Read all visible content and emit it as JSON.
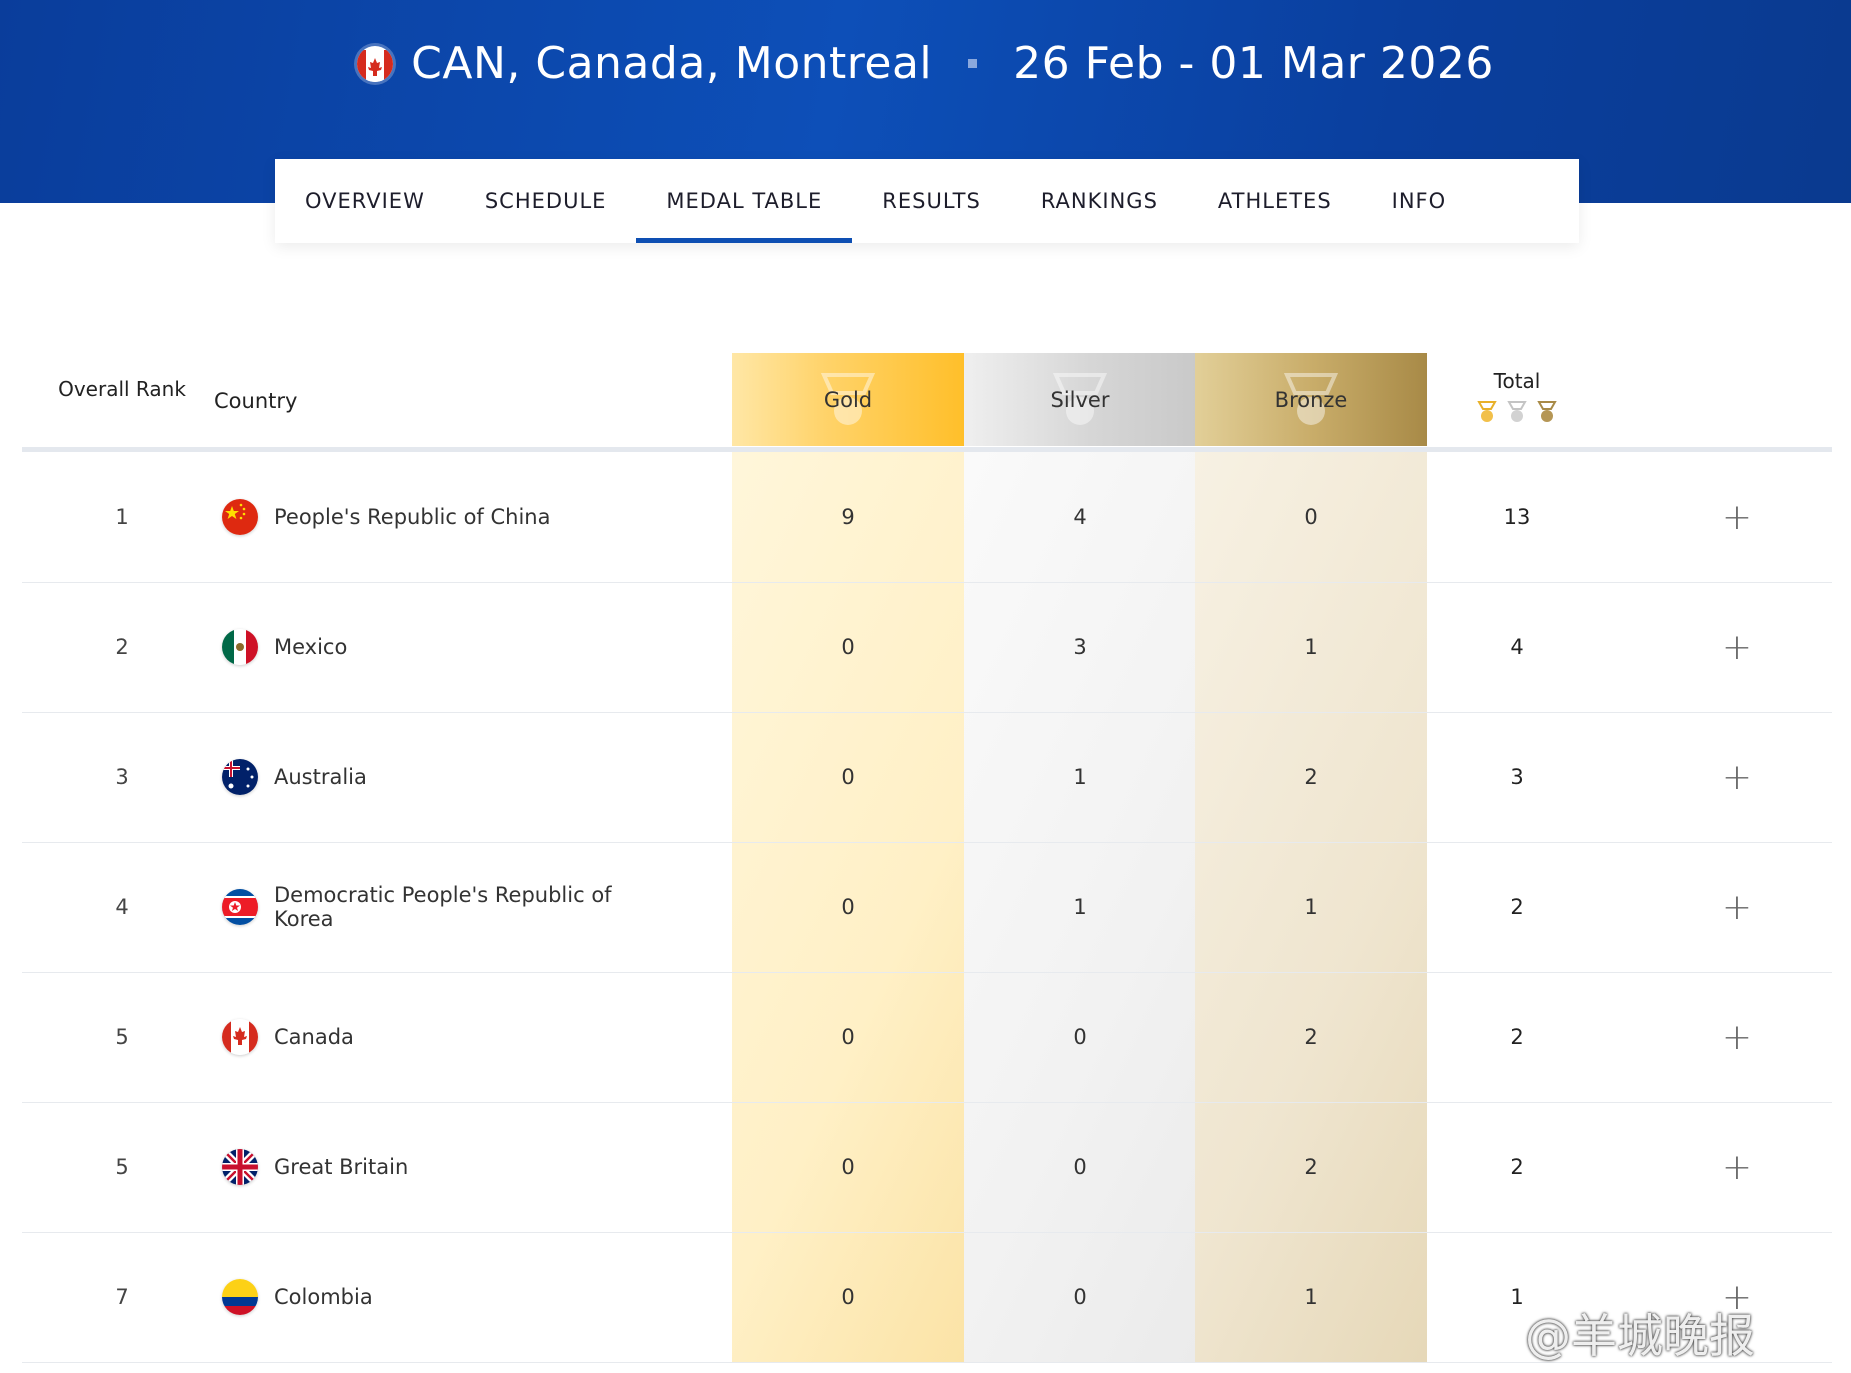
{
  "event": {
    "location": "CAN, Canada, Montreal",
    "dates": "26 Feb - 01 Mar 2026"
  },
  "tabs": [
    {
      "label": "OVERVIEW"
    },
    {
      "label": "SCHEDULE"
    },
    {
      "label": "MEDAL TABLE",
      "active": true
    },
    {
      "label": "RESULTS"
    },
    {
      "label": "RANKINGS"
    },
    {
      "label": "ATHLETES"
    },
    {
      "label": "INFO"
    }
  ],
  "table": {
    "headers": {
      "rank": "Overall Rank",
      "country": "Country",
      "gold": "Gold",
      "silver": "Silver",
      "bronze": "Bronze",
      "total": "Total"
    },
    "rows": [
      {
        "rank": "1",
        "country": "People's Republic of China",
        "gold": "9",
        "silver": "4",
        "bronze": "0",
        "total": "13",
        "flag": "china-flag-icon"
      },
      {
        "rank": "2",
        "country": "Mexico",
        "gold": "0",
        "silver": "3",
        "bronze": "1",
        "total": "4",
        "flag": "mexico-flag-icon"
      },
      {
        "rank": "3",
        "country": "Australia",
        "gold": "0",
        "silver": "1",
        "bronze": "2",
        "total": "3",
        "flag": "australia-flag-icon"
      },
      {
        "rank": "4",
        "country": "Democratic People's Republic of Korea",
        "gold": "0",
        "silver": "1",
        "bronze": "1",
        "total": "2",
        "flag": "dprk-flag-icon"
      },
      {
        "rank": "5",
        "country": "Canada",
        "gold": "0",
        "silver": "0",
        "bronze": "2",
        "total": "2",
        "flag": "canada-flag-icon"
      },
      {
        "rank": "5",
        "country": "Great Britain",
        "gold": "0",
        "silver": "0",
        "bronze": "2",
        "total": "2",
        "flag": "great-britain-flag-icon"
      },
      {
        "rank": "7",
        "country": "Colombia",
        "gold": "0",
        "silver": "0",
        "bronze": "1",
        "total": "1",
        "flag": "colombia-flag-icon"
      }
    ],
    "expand_symbol": "+"
  },
  "colors": {
    "header_blue": "#0d4fb8",
    "tab_active_underline": "#0e4fb3",
    "gold": "#ffbf2a",
    "silver": "#c9c9c9",
    "bronze": "#a88a47"
  },
  "watermark": "@羊城晚报"
}
